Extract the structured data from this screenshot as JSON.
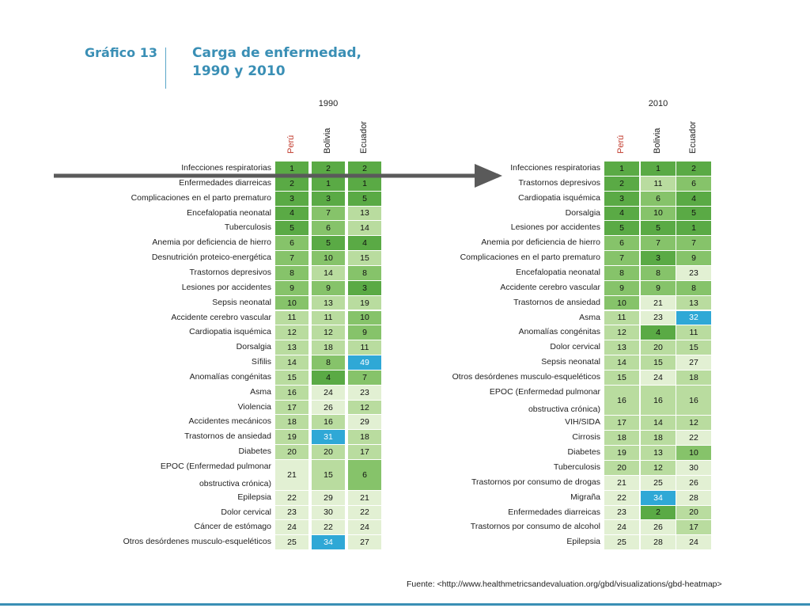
{
  "header": {
    "chart_number": "Gráfico 13",
    "title_line1": "Carga de enfermedad,",
    "title_line2": "1990 y 2010"
  },
  "source": "Fuente: <http://www.healthmetricsandevaluation.org/gbd/visualizations/gbd-heatmap>",
  "colors": {
    "accent": "#3a8fb5",
    "rank_1_5": "#5aaa45",
    "rank_6_10": "#86c36a",
    "rank_11_20": "#b9dc9f",
    "rank_21_30": "#e2f0d3",
    "rank_above_30": "#2fa8d6",
    "peru_label": "#c0392b"
  },
  "chart_data": [
    {
      "type": "table",
      "year": "1990",
      "columns": [
        "Perú",
        "Bolivia",
        "Ecuador"
      ],
      "rows": [
        {
          "label": "Infecciones respiratorias",
          "values": [
            1,
            2,
            2
          ]
        },
        {
          "label": "Enfermedades diarreicas",
          "values": [
            2,
            1,
            1
          ]
        },
        {
          "label": "Complicaciones en el parto prematuro",
          "values": [
            3,
            3,
            5
          ]
        },
        {
          "label": "Encefalopatia neonatal",
          "values": [
            4,
            7,
            13
          ]
        },
        {
          "label": "Tuberculosis",
          "values": [
            5,
            6,
            14
          ]
        },
        {
          "label": "Anemia por deficiencia de hierro",
          "values": [
            6,
            5,
            4
          ]
        },
        {
          "label": "Desnutrición proteico-energética",
          "values": [
            7,
            10,
            15
          ]
        },
        {
          "label": "Trastornos depresivos",
          "values": [
            8,
            14,
            8
          ]
        },
        {
          "label": "Lesiones por accidentes",
          "values": [
            9,
            9,
            3
          ]
        },
        {
          "label": "Sepsis neonatal",
          "values": [
            10,
            13,
            19
          ]
        },
        {
          "label": "Accidente cerebro vascular",
          "values": [
            11,
            11,
            10
          ]
        },
        {
          "label": "Cardiopatia isquémica",
          "values": [
            12,
            12,
            9
          ]
        },
        {
          "label": "Dorsalgia",
          "values": [
            13,
            18,
            11
          ]
        },
        {
          "label": "Sífilis",
          "values": [
            14,
            8,
            49
          ]
        },
        {
          "label": "Anomalías congénitas",
          "values": [
            15,
            4,
            7
          ]
        },
        {
          "label": "Asma",
          "values": [
            16,
            24,
            23
          ]
        },
        {
          "label": "Violencia",
          "values": [
            17,
            26,
            12
          ]
        },
        {
          "label": "Accidentes mecánicos",
          "values": [
            18,
            16,
            29
          ]
        },
        {
          "label": "Trastornos de ansiedad",
          "values": [
            19,
            31,
            18
          ]
        },
        {
          "label": "Diabetes",
          "values": [
            20,
            20,
            17
          ]
        },
        {
          "label": "EPOC (Enfermedad pulmonar",
          "label2": "obstructiva crónica)",
          "values": [
            21,
            15,
            6
          ]
        },
        {
          "label": "Epilepsia",
          "values": [
            22,
            29,
            21
          ]
        },
        {
          "label": "Dolor cervical",
          "values": [
            23,
            30,
            22
          ]
        },
        {
          "label": "Cáncer de estómago",
          "values": [
            24,
            22,
            24
          ]
        },
        {
          "label": "Otros desórdenes musculo-esqueléticos",
          "values": [
            25,
            34,
            27
          ]
        }
      ]
    },
    {
      "type": "table",
      "year": "2010",
      "columns": [
        "Perú",
        "Bolivia",
        "Ecuador"
      ],
      "rows": [
        {
          "label": "Infecciones respiratorias",
          "values": [
            1,
            1,
            2
          ]
        },
        {
          "label": "Trastornos depresivos",
          "values": [
            2,
            11,
            6
          ]
        },
        {
          "label": "Cardiopatia isquémica",
          "values": [
            3,
            6,
            4
          ]
        },
        {
          "label": "Dorsalgia",
          "values": [
            4,
            10,
            5
          ]
        },
        {
          "label": "Lesiones por accidentes",
          "values": [
            5,
            5,
            1
          ]
        },
        {
          "label": "Anemia por deficiencia de hierro",
          "values": [
            6,
            7,
            7
          ]
        },
        {
          "label": "Complicaciones en el parto prematuro",
          "values": [
            7,
            3,
            9
          ]
        },
        {
          "label": "Encefalopatia neonatal",
          "values": [
            8,
            8,
            23
          ]
        },
        {
          "label": "Accidente cerebro vascular",
          "values": [
            9,
            9,
            8
          ]
        },
        {
          "label": "Trastornos de ansiedad",
          "values": [
            10,
            21,
            13
          ]
        },
        {
          "label": "Asma",
          "values": [
            11,
            23,
            32
          ]
        },
        {
          "label": "Anomalías congénitas",
          "values": [
            12,
            4,
            11
          ]
        },
        {
          "label": "Dolor cervical",
          "values": [
            13,
            20,
            15
          ]
        },
        {
          "label": "Sepsis neonatal",
          "values": [
            14,
            15,
            27
          ]
        },
        {
          "label": "Otros desórdenes musculo-esqueléticos",
          "values": [
            15,
            24,
            18
          ]
        },
        {
          "label": "EPOC (Enfermedad pulmonar",
          "label2": "obstructiva crónica)",
          "values": [
            16,
            16,
            16
          ]
        },
        {
          "label": "VIH/SIDA",
          "values": [
            17,
            14,
            12
          ]
        },
        {
          "label": "Cirrosis",
          "values": [
            18,
            18,
            22
          ]
        },
        {
          "label": "Diabetes",
          "values": [
            19,
            13,
            10
          ]
        },
        {
          "label": "Tuberculosis",
          "values": [
            20,
            12,
            30
          ]
        },
        {
          "label": "Trastornos por consumo de drogas",
          "values": [
            21,
            25,
            26
          ]
        },
        {
          "label": "Migraña",
          "values": [
            22,
            34,
            28
          ]
        },
        {
          "label": "Enfermedades diarreicas",
          "values": [
            23,
            2,
            20
          ]
        },
        {
          "label": "Trastornos por consumo de alcohol",
          "values": [
            24,
            26,
            17
          ]
        },
        {
          "label": "Epilepsia",
          "values": [
            25,
            28,
            24
          ]
        }
      ]
    }
  ]
}
